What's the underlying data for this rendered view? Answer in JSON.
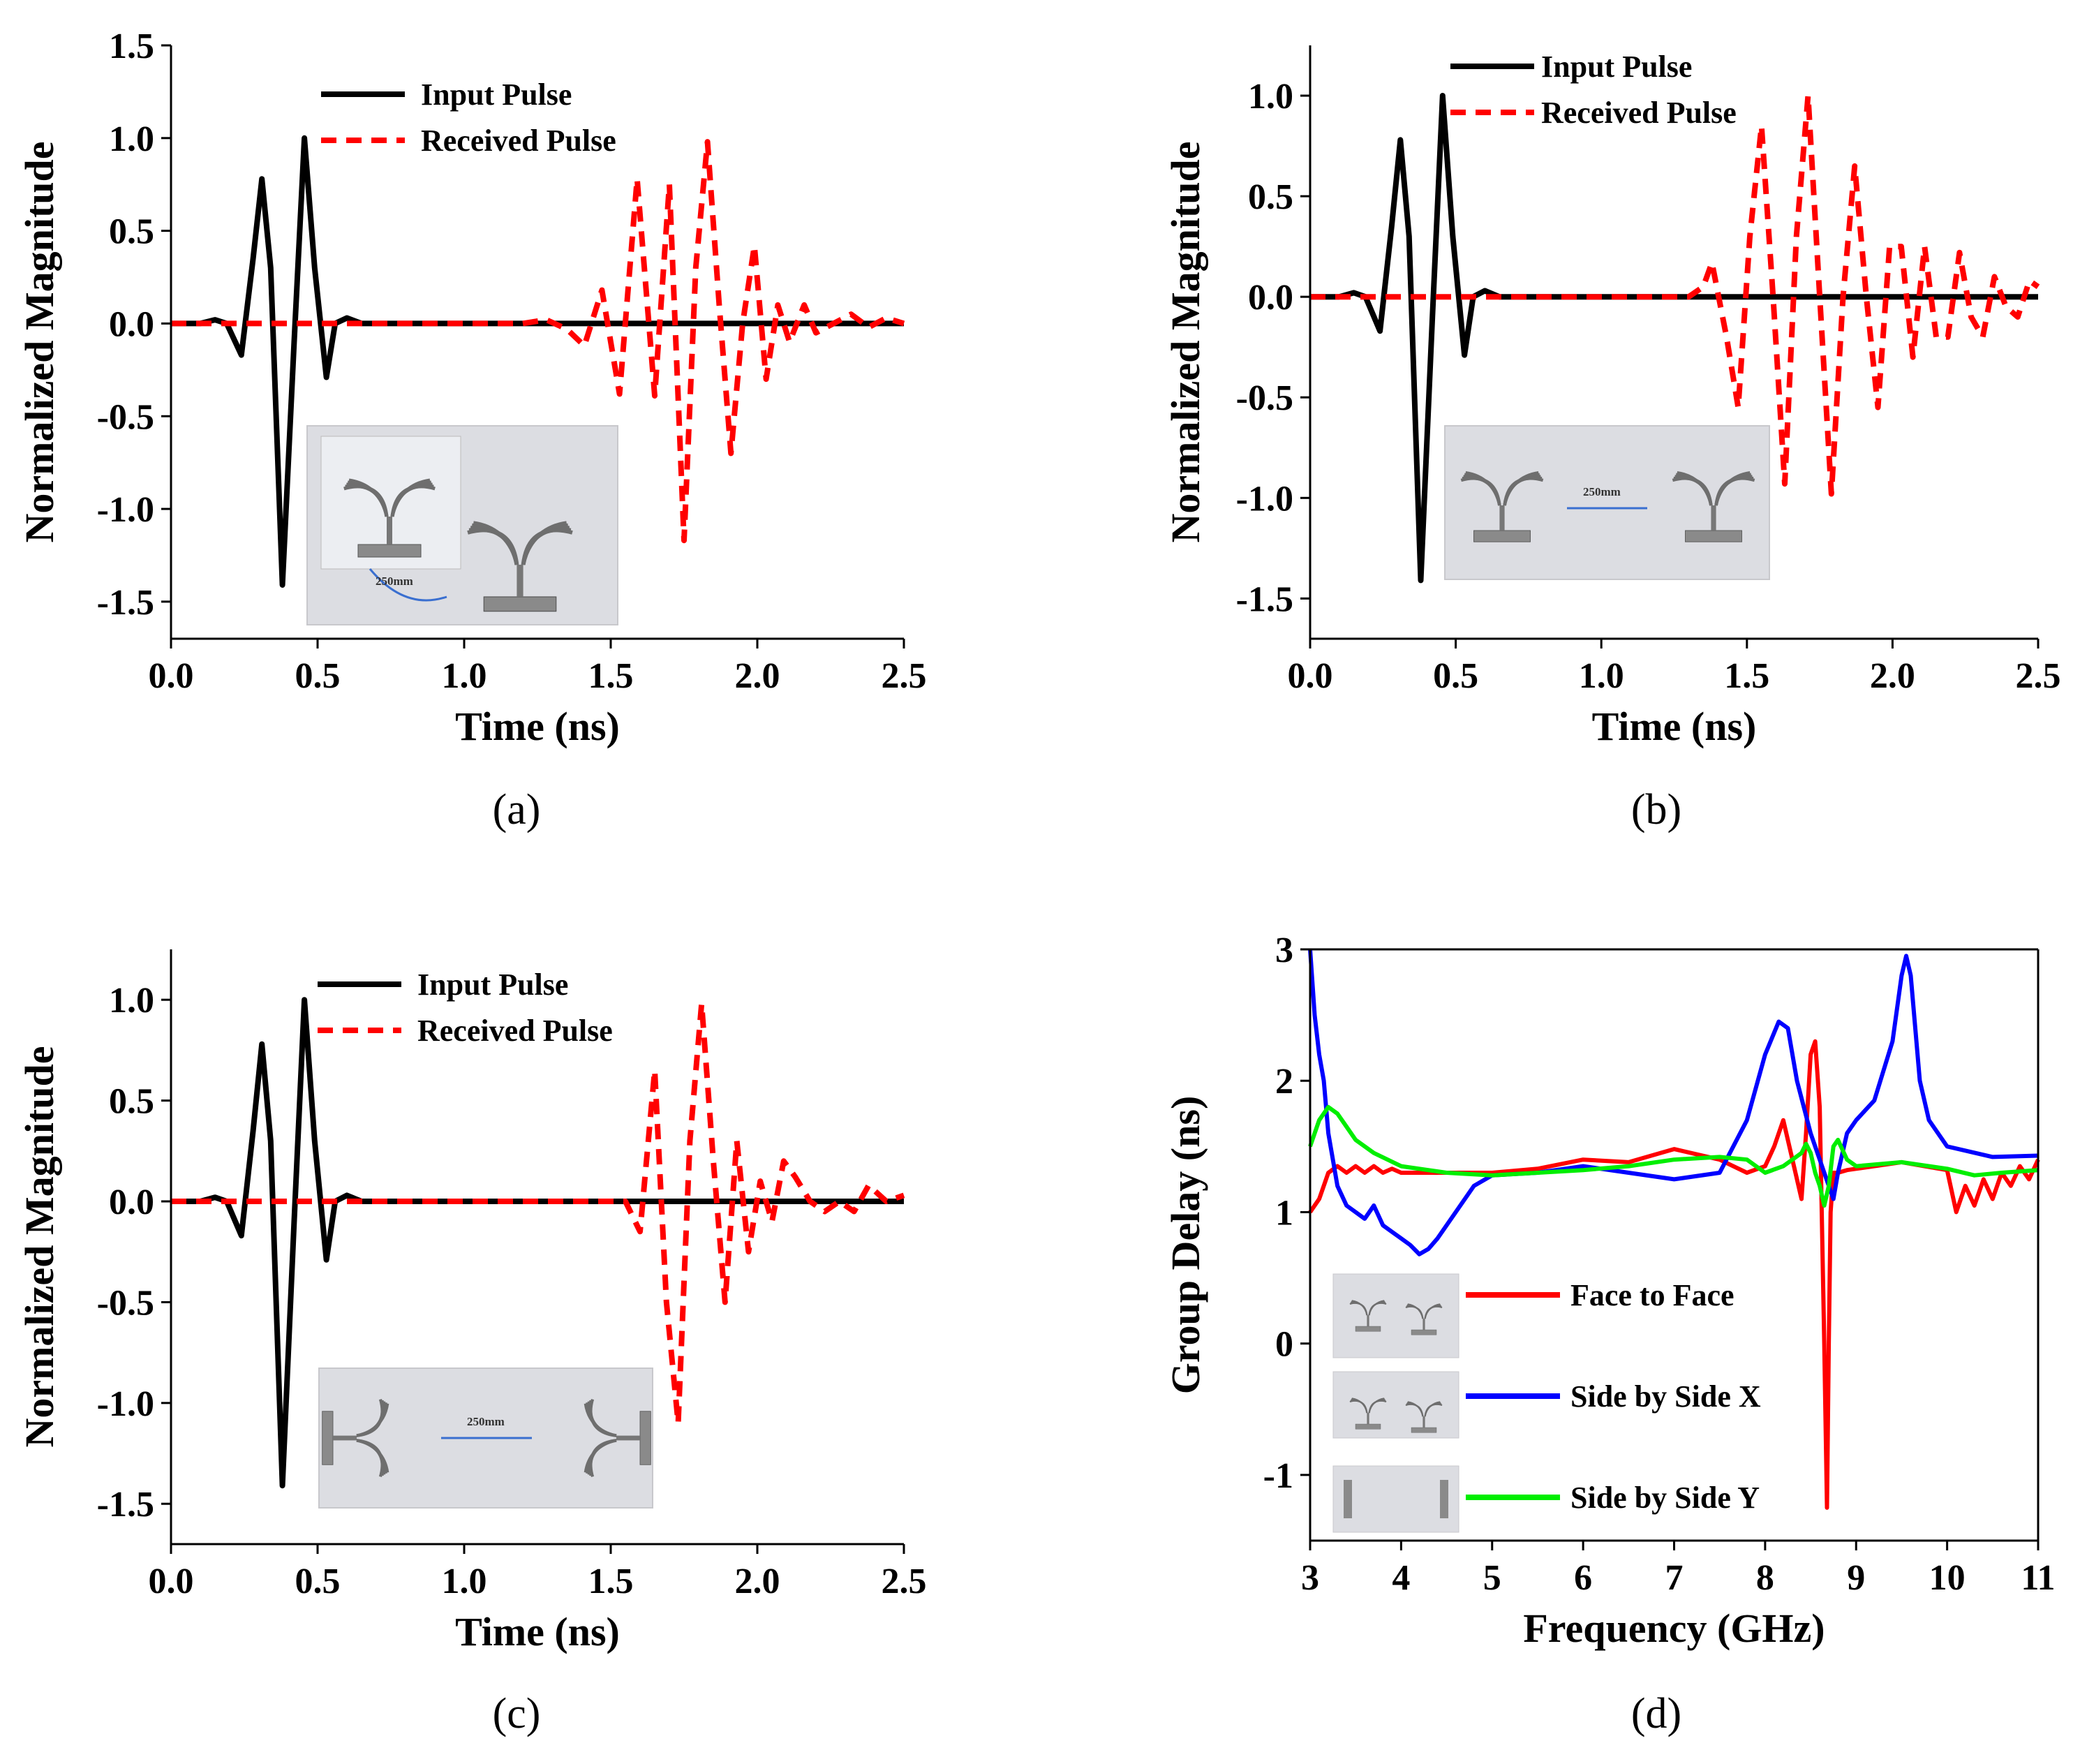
{
  "chart_data": [
    {
      "panel": "a",
      "caption": "(a)",
      "type": "line",
      "xlabel": "Time (ns)",
      "ylabel": "Normalized Magnitude",
      "xlim": [
        0.0,
        2.5
      ],
      "ylim": [
        -1.7,
        1.5
      ],
      "xticks": [
        "0.0",
        "0.5",
        "1.0",
        "1.5",
        "2.0",
        "2.5"
      ],
      "yticks": [
        "-1.5",
        "-1.0",
        "-0.5",
        "0.0",
        "0.5",
        "1.0",
        "1.5"
      ],
      "legend_position": "top-left",
      "inset_label": "250mm",
      "series": [
        {
          "name": "Input Pulse",
          "color": "#000000",
          "style": "solid",
          "x": [
            0.0,
            0.1,
            0.15,
            0.19,
            0.24,
            0.28,
            0.31,
            0.34,
            0.38,
            0.42,
            0.455,
            0.49,
            0.53,
            0.56,
            0.6,
            0.65,
            1.0,
            2.5
          ],
          "y": [
            0.0,
            0.0,
            0.02,
            0.0,
            -0.17,
            0.35,
            0.78,
            0.3,
            -1.41,
            -0.1,
            1.0,
            0.3,
            -0.29,
            0.0,
            0.03,
            0.0,
            0.0,
            0.0
          ]
        },
        {
          "name": "Received Pulse",
          "color": "#ff0000",
          "style": "dashed",
          "x": [
            0.0,
            1.2,
            1.28,
            1.35,
            1.41,
            1.47,
            1.53,
            1.59,
            1.65,
            1.7,
            1.75,
            1.79,
            1.83,
            1.87,
            1.91,
            1.95,
            1.99,
            2.03,
            2.07,
            2.11,
            2.16,
            2.2,
            2.26,
            2.32,
            2.38,
            2.44,
            2.5
          ],
          "y": [
            0.0,
            0.0,
            0.02,
            -0.03,
            -0.12,
            0.18,
            -0.38,
            0.78,
            -0.39,
            0.75,
            -1.17,
            0.3,
            0.98,
            0.1,
            -0.7,
            0.0,
            0.42,
            -0.3,
            0.1,
            -0.1,
            0.1,
            -0.05,
            0.0,
            0.05,
            -0.02,
            0.03,
            0.0
          ]
        }
      ]
    },
    {
      "panel": "b",
      "caption": "(b)",
      "type": "line",
      "xlabel": "Time (ns)",
      "ylabel": "Normalized Magnitude",
      "xlim": [
        0.0,
        2.5
      ],
      "ylim": [
        -1.7,
        1.25
      ],
      "xticks": [
        "0.0",
        "0.5",
        "1.0",
        "1.5",
        "2.0",
        "2.5"
      ],
      "yticks": [
        "-1.5",
        "-1.0",
        "-0.5",
        "0.0",
        "0.5",
        "1.0"
      ],
      "legend_position": "top-center",
      "inset_label": "250mm",
      "series": [
        {
          "name": "Input Pulse",
          "color": "#000000",
          "style": "solid",
          "x": [
            0.0,
            0.1,
            0.15,
            0.19,
            0.24,
            0.28,
            0.31,
            0.34,
            0.38,
            0.42,
            0.455,
            0.49,
            0.53,
            0.56,
            0.6,
            0.65,
            1.0,
            2.5
          ],
          "y": [
            0.0,
            0.0,
            0.02,
            0.0,
            -0.17,
            0.35,
            0.78,
            0.3,
            -1.41,
            -0.1,
            1.0,
            0.3,
            -0.29,
            0.0,
            0.03,
            0.0,
            0.0,
            0.0
          ]
        },
        {
          "name": "Received Pulse",
          "color": "#ff0000",
          "style": "dashed",
          "x": [
            0.0,
            1.3,
            1.35,
            1.38,
            1.43,
            1.47,
            1.51,
            1.55,
            1.59,
            1.63,
            1.67,
            1.71,
            1.75,
            1.79,
            1.83,
            1.87,
            1.91,
            1.95,
            1.99,
            2.03,
            2.07,
            2.11,
            2.15,
            2.19,
            2.23,
            2.27,
            2.31,
            2.35,
            2.39,
            2.43,
            2.47,
            2.5
          ],
          "y": [
            0.0,
            0.0,
            0.05,
            0.17,
            -0.2,
            -0.55,
            0.3,
            0.85,
            0.0,
            -0.93,
            0.3,
            1.0,
            0.0,
            -0.98,
            0.0,
            0.65,
            0.0,
            -0.55,
            0.25,
            0.25,
            -0.3,
            0.25,
            -0.2,
            -0.2,
            0.22,
            -0.1,
            -0.2,
            0.1,
            -0.05,
            -0.1,
            0.08,
            0.05
          ]
        }
      ]
    },
    {
      "panel": "c",
      "caption": "(c)",
      "type": "line",
      "xlabel": "Time (ns)",
      "ylabel": "Normalized Magnitude",
      "xlim": [
        0.0,
        2.5
      ],
      "ylim": [
        -1.7,
        1.25
      ],
      "xticks": [
        "0.0",
        "0.5",
        "1.0",
        "1.5",
        "2.0",
        "2.5"
      ],
      "yticks": [
        "-1.5",
        "-1.0",
        "-0.5",
        "0.0",
        "0.5",
        "1.0"
      ],
      "legend_position": "top-center",
      "inset_label": "250mm",
      "series": [
        {
          "name": "Input Pulse",
          "color": "#000000",
          "style": "solid",
          "x": [
            0.0,
            0.1,
            0.15,
            0.19,
            0.24,
            0.28,
            0.31,
            0.34,
            0.38,
            0.42,
            0.455,
            0.49,
            0.53,
            0.56,
            0.6,
            0.65,
            1.0,
            2.5
          ],
          "y": [
            0.0,
            0.0,
            0.02,
            0.0,
            -0.17,
            0.35,
            0.78,
            0.3,
            -1.41,
            -0.1,
            1.0,
            0.3,
            -0.29,
            0.0,
            0.03,
            0.0,
            0.0,
            0.0
          ]
        },
        {
          "name": "Received Pulse",
          "color": "#ff0000",
          "style": "dashed",
          "x": [
            0.0,
            1.5,
            1.55,
            1.6,
            1.65,
            1.69,
            1.73,
            1.77,
            1.81,
            1.85,
            1.89,
            1.93,
            1.97,
            2.01,
            2.05,
            2.09,
            2.13,
            2.18,
            2.23,
            2.28,
            2.33,
            2.38,
            2.44,
            2.5
          ],
          "y": [
            0.0,
            0.0,
            0.0,
            -0.15,
            0.65,
            -0.5,
            -1.1,
            0.3,
            0.98,
            0.2,
            -0.5,
            0.3,
            -0.25,
            0.1,
            -0.1,
            0.2,
            0.12,
            0.0,
            -0.05,
            0.0,
            -0.05,
            0.08,
            0.0,
            0.03
          ]
        }
      ]
    },
    {
      "panel": "d",
      "caption": "(d)",
      "type": "line",
      "xlabel": "Frequency (GHz)",
      "ylabel": "Group Delay (ns)",
      "xlim": [
        3,
        11
      ],
      "ylim": [
        -1.5,
        3
      ],
      "xticks": [
        "3",
        "4",
        "5",
        "6",
        "7",
        "8",
        "9",
        "10",
        "11"
      ],
      "yticks": [
        "-1",
        "0",
        "1",
        "2",
        "3"
      ],
      "legend_position": "bottom-left",
      "series": [
        {
          "name": "Face to Face",
          "color": "#ff0000",
          "style": "solid",
          "x": [
            3.0,
            3.1,
            3.2,
            3.3,
            3.4,
            3.5,
            3.6,
            3.7,
            3.8,
            3.9,
            4.0,
            4.5,
            5.0,
            5.5,
            6.0,
            6.5,
            7.0,
            7.5,
            7.8,
            8.0,
            8.1,
            8.2,
            8.3,
            8.4,
            8.45,
            8.5,
            8.55,
            8.6,
            8.65,
            8.68,
            8.7,
            8.72,
            8.75,
            8.8,
            8.9,
            9.0,
            9.5,
            10.0,
            10.1,
            10.2,
            10.3,
            10.4,
            10.5,
            10.6,
            10.7,
            10.8,
            10.9,
            11.0
          ],
          "y": [
            1.0,
            1.1,
            1.3,
            1.35,
            1.3,
            1.35,
            1.3,
            1.35,
            1.3,
            1.33,
            1.3,
            1.3,
            1.3,
            1.33,
            1.4,
            1.38,
            1.48,
            1.4,
            1.3,
            1.35,
            1.5,
            1.7,
            1.4,
            1.1,
            1.6,
            2.2,
            2.3,
            1.8,
            0.0,
            -1.25,
            0.0,
            1.0,
            1.3,
            1.3,
            1.32,
            1.33,
            1.38,
            1.32,
            1.0,
            1.2,
            1.05,
            1.25,
            1.1,
            1.3,
            1.2,
            1.35,
            1.25,
            1.4
          ]
        },
        {
          "name": "Side by Side X",
          "color": "#0000ff",
          "style": "solid",
          "x": [
            3.0,
            3.05,
            3.1,
            3.15,
            3.2,
            3.3,
            3.4,
            3.5,
            3.6,
            3.7,
            3.8,
            3.9,
            4.0,
            4.1,
            4.2,
            4.3,
            4.4,
            4.6,
            4.8,
            5.0,
            5.5,
            6.0,
            6.5,
            7.0,
            7.5,
            7.8,
            8.0,
            8.15,
            8.25,
            8.35,
            8.5,
            8.6,
            8.7,
            8.75,
            8.8,
            8.9,
            9.0,
            9.2,
            9.4,
            9.5,
            9.55,
            9.6,
            9.7,
            9.8,
            10.0,
            10.5,
            11.0
          ],
          "y": [
            3.0,
            2.5,
            2.2,
            2.0,
            1.6,
            1.2,
            1.05,
            1.0,
            0.95,
            1.05,
            0.9,
            0.85,
            0.8,
            0.75,
            0.68,
            0.72,
            0.8,
            1.0,
            1.2,
            1.28,
            1.3,
            1.35,
            1.3,
            1.25,
            1.3,
            1.7,
            2.2,
            2.45,
            2.4,
            2.0,
            1.6,
            1.4,
            1.2,
            1.1,
            1.3,
            1.6,
            1.7,
            1.85,
            2.3,
            2.8,
            2.95,
            2.8,
            2.0,
            1.7,
            1.5,
            1.42,
            1.43
          ]
        },
        {
          "name": "Side by Side Y",
          "color": "#00ee00",
          "style": "solid",
          "x": [
            3.0,
            3.1,
            3.2,
            3.3,
            3.4,
            3.5,
            3.7,
            4.0,
            4.5,
            5.0,
            5.5,
            6.0,
            6.5,
            7.0,
            7.5,
            7.8,
            8.0,
            8.2,
            8.3,
            8.4,
            8.45,
            8.5,
            8.55,
            8.6,
            8.65,
            8.7,
            8.75,
            8.8,
            8.9,
            9.0,
            9.5,
            10.0,
            10.3,
            10.6,
            11.0
          ],
          "y": [
            1.5,
            1.7,
            1.8,
            1.75,
            1.65,
            1.55,
            1.45,
            1.35,
            1.3,
            1.28,
            1.3,
            1.32,
            1.35,
            1.4,
            1.42,
            1.4,
            1.3,
            1.35,
            1.4,
            1.45,
            1.52,
            1.45,
            1.3,
            1.2,
            1.05,
            1.2,
            1.5,
            1.55,
            1.4,
            1.35,
            1.38,
            1.33,
            1.28,
            1.3,
            1.32
          ]
        }
      ]
    }
  ]
}
